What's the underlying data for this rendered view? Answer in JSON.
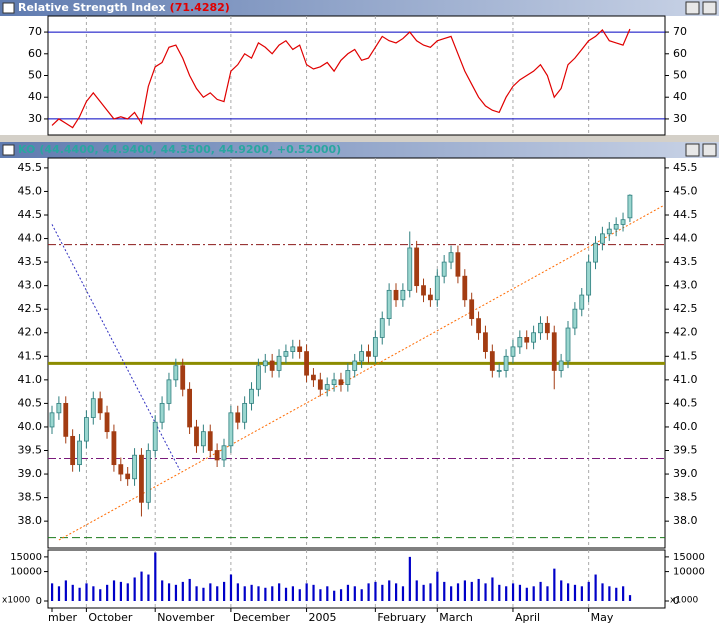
{
  "chart_data": [
    {
      "type": "line",
      "title": "Relative Strength Index",
      "value_label": "(71.4282)",
      "values": [
        27,
        30,
        28,
        26,
        31,
        38,
        42,
        38,
        34,
        30,
        31,
        30,
        33,
        28,
        45,
        54,
        56,
        63,
        64,
        58,
        50,
        44,
        40,
        42,
        39,
        38,
        52,
        55,
        60,
        58,
        65,
        63,
        60,
        64,
        66,
        62,
        64,
        55,
        53,
        54,
        56,
        52,
        57,
        60,
        62,
        57,
        58,
        63,
        68,
        66,
        65,
        67,
        70,
        66,
        64,
        63,
        66,
        67,
        68,
        60,
        52,
        46,
        40,
        36,
        34,
        33,
        40,
        45,
        48,
        50,
        52,
        55,
        50,
        40,
        44,
        55,
        58,
        62,
        66,
        68,
        71,
        66,
        65,
        64,
        71.4282
      ],
      "color": "#e00000",
      "ylim": [
        22.6,
        77.4
      ],
      "yticks": [
        30,
        40,
        50,
        60,
        70
      ],
      "lines": [
        {
          "value": 70,
          "color": "#0000c0"
        },
        {
          "value": 30,
          "color": "#0000c0"
        }
      ]
    },
    {
      "type": "candlestick",
      "title": "KO",
      "value_label": "(44.4400, 44.9400, 44.3500, 44.9200, +0.52000)",
      "open": [
        40.0,
        40.3,
        40.5,
        39.8,
        39.2,
        39.7,
        40.2,
        40.6,
        40.3,
        39.9,
        39.2,
        39.0,
        38.9,
        39.4,
        38.4,
        39.5,
        40.1,
        40.5,
        41.0,
        41.3,
        40.8,
        40.0,
        39.6,
        39.9,
        39.5,
        39.3,
        39.6,
        40.3,
        40.1,
        40.5,
        40.8,
        41.3,
        41.4,
        41.2,
        41.5,
        41.6,
        41.7,
        41.6,
        41.1,
        41.0,
        40.8,
        40.9,
        41.0,
        40.9,
        41.2,
        41.4,
        41.6,
        41.5,
        41.9,
        42.3,
        42.9,
        42.7,
        42.9,
        43.8,
        43.0,
        42.8,
        42.7,
        43.2,
        43.5,
        43.7,
        43.2,
        42.7,
        42.3,
        42.0,
        41.6,
        41.2,
        41.2,
        41.5,
        41.7,
        41.9,
        41.8,
        42.0,
        42.2,
        42.0,
        41.2,
        41.4,
        42.1,
        42.5,
        42.8,
        43.5,
        43.9,
        44.1,
        44.2,
        44.3,
        44.44
      ],
      "high": [
        40.45,
        40.65,
        40.65,
        39.95,
        39.85,
        40.35,
        40.75,
        40.75,
        40.45,
        40.05,
        39.35,
        39.15,
        39.55,
        39.55,
        39.65,
        40.25,
        40.65,
        41.15,
        41.45,
        41.45,
        40.95,
        40.15,
        40.05,
        40.05,
        39.65,
        39.75,
        40.45,
        40.45,
        40.65,
        40.95,
        41.45,
        41.55,
        41.55,
        41.65,
        41.75,
        41.85,
        41.85,
        41.75,
        41.25,
        41.15,
        41.05,
        41.15,
        41.15,
        41.35,
        41.55,
        41.75,
        41.75,
        42.05,
        42.45,
        43.05,
        43.05,
        43.05,
        44.15,
        43.95,
        43.15,
        42.95,
        43.35,
        43.65,
        43.85,
        43.85,
        43.35,
        42.85,
        42.45,
        42.15,
        41.75,
        41.35,
        41.65,
        41.85,
        42.05,
        42.05,
        42.15,
        42.35,
        42.35,
        42.15,
        41.55,
        42.25,
        42.65,
        42.95,
        43.65,
        44.05,
        44.25,
        44.35,
        44.45,
        44.55,
        44.94
      ],
      "low": [
        39.85,
        40.15,
        39.65,
        39.05,
        39.05,
        39.55,
        40.05,
        40.15,
        39.75,
        39.05,
        38.85,
        38.75,
        38.75,
        38.1,
        38.25,
        39.35,
        39.95,
        40.35,
        40.85,
        40.65,
        39.85,
        39.45,
        39.45,
        39.35,
        39.15,
        39.15,
        39.45,
        39.95,
        39.95,
        40.35,
        40.65,
        41.15,
        41.05,
        41.05,
        41.35,
        41.45,
        41.45,
        40.95,
        40.85,
        40.65,
        40.65,
        40.75,
        40.75,
        40.75,
        41.05,
        41.25,
        41.35,
        41.35,
        41.75,
        42.15,
        42.55,
        42.55,
        42.75,
        42.85,
        42.65,
        42.55,
        42.55,
        43.05,
        43.35,
        43.05,
        42.55,
        42.15,
        41.85,
        41.45,
        41.05,
        41.05,
        41.05,
        41.35,
        41.55,
        41.65,
        41.65,
        41.85,
        41.85,
        40.8,
        41.05,
        41.25,
        41.95,
        42.35,
        42.65,
        43.35,
        43.75,
        43.95,
        44.05,
        44.15,
        44.35
      ],
      "close": [
        40.3,
        40.5,
        39.8,
        39.2,
        39.7,
        40.2,
        40.6,
        40.3,
        39.9,
        39.2,
        39.0,
        38.9,
        39.4,
        38.4,
        39.5,
        40.1,
        40.5,
        41.0,
        41.3,
        40.8,
        40.0,
        39.6,
        39.9,
        39.5,
        39.3,
        39.6,
        40.3,
        40.1,
        40.5,
        40.8,
        41.3,
        41.4,
        41.2,
        41.5,
        41.6,
        41.7,
        41.6,
        41.1,
        41.0,
        40.8,
        40.9,
        41.0,
        40.9,
        41.2,
        41.4,
        41.6,
        41.5,
        41.9,
        42.3,
        42.9,
        42.7,
        42.9,
        43.8,
        43.0,
        42.8,
        42.7,
        43.2,
        43.5,
        43.7,
        43.2,
        42.7,
        42.3,
        42.0,
        41.6,
        41.2,
        41.2,
        41.5,
        41.7,
        41.9,
        41.8,
        42.0,
        42.2,
        42.0,
        41.2,
        41.4,
        42.1,
        42.5,
        42.8,
        43.5,
        43.9,
        44.1,
        44.2,
        44.3,
        44.4,
        44.92
      ],
      "up_color": "#9ad6cf",
      "down_color": "#a33c12",
      "ylim": [
        37.43,
        45.71
      ],
      "yticks": [
        {
          "value": 38,
          "label": "38.0"
        },
        38.5,
        {
          "value": 39,
          "label": "39.0"
        },
        39.5,
        {
          "value": 40,
          "label": "40.0"
        },
        40.5,
        {
          "value": 41,
          "label": "41.0"
        },
        41.5,
        {
          "value": 42,
          "label": "42.0"
        },
        42.5,
        {
          "value": 43,
          "label": "43.0"
        },
        43.5,
        {
          "value": 44,
          "label": "44.0"
        },
        44.5,
        {
          "value": 45,
          "label": "45.0"
        },
        45.5
      ],
      "lines": [
        {
          "value": 43.87,
          "color": "#8b1a1a",
          "style": "dashdot"
        },
        {
          "value": 41.35,
          "color": "#8c8c00",
          "style": "thick"
        },
        {
          "value": 39.33,
          "color": "#7a1a7a",
          "style": "dashdot"
        },
        {
          "value": 37.65,
          "color": "#1a7a1a",
          "style": "dashed"
        }
      ],
      "trendlines": [
        {
          "x": [
            1,
            89
          ],
          "values": [
            37.6,
            44.71
          ],
          "color": "#ff6a00"
        },
        {
          "x": [
            0,
            18.6
          ],
          "values": [
            44.3,
            39.08
          ],
          "color": "#3030c0"
        }
      ]
    },
    {
      "type": "bar",
      "unit_label": "x1000",
      "categories": [
        "mber",
        null,
        null,
        null,
        null,
        "October",
        null,
        null,
        null,
        null,
        null,
        null,
        null,
        null,
        null,
        "November",
        null,
        null,
        null,
        null,
        null,
        null,
        null,
        null,
        null,
        null,
        "December",
        null,
        null,
        null,
        null,
        null,
        null,
        null,
        null,
        null,
        null,
        "2005",
        null,
        null,
        null,
        null,
        null,
        null,
        null,
        null,
        null,
        "February",
        null,
        null,
        null,
        null,
        null,
        null,
        null,
        null,
        "March",
        null,
        null,
        null,
        null,
        null,
        null,
        null,
        null,
        null,
        null,
        "April",
        null,
        null,
        null,
        null,
        null,
        null,
        null,
        null,
        null,
        null,
        "May",
        null,
        null,
        null,
        null,
        null,
        null
      ],
      "values": [
        6000,
        5000,
        7000,
        5500,
        4500,
        6000,
        5000,
        4000,
        5500,
        7000,
        6500,
        6000,
        8000,
        10000,
        9000,
        16500,
        7000,
        6000,
        5500,
        6500,
        7500,
        5000,
        4500,
        6000,
        5000,
        6500,
        9000,
        6000,
        5000,
        5500,
        5000,
        4500,
        5000,
        6000,
        4500,
        5000,
        4000,
        6000,
        5500,
        4000,
        5000,
        3500,
        4000,
        5500,
        5000,
        4000,
        6000,
        6500,
        5500,
        7000,
        6000,
        5000,
        15000,
        7000,
        5500,
        6000,
        10000,
        6500,
        5000,
        6000,
        7000,
        6500,
        7500,
        6000,
        8000,
        5500,
        5000,
        6000,
        5500,
        4500,
        5000,
        6500,
        5000,
        11000,
        7000,
        6000,
        5500,
        5000,
        6500,
        9000,
        6000,
        5000,
        4500,
        5000,
        2000
      ],
      "color": "#0000c8",
      "ylim": [
        0,
        17000
      ],
      "yticks": [
        0,
        10000,
        15000
      ]
    }
  ]
}
